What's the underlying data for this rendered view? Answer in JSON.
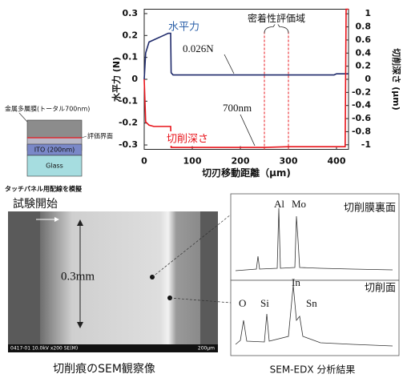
{
  "chart_data": {
    "type": "line",
    "x_label": "切刃移動距離（μm)",
    "y_label": "水平力 (N)",
    "y2_label": "切削深さ (μm)",
    "x": [
      0,
      3,
      10,
      20,
      40,
      50,
      55,
      56,
      60,
      100,
      150,
      200,
      250,
      300,
      350,
      395,
      400,
      418,
      420,
      425
    ],
    "series": [
      {
        "name": "水平力",
        "color": "#1f2a6b",
        "label_color": "#2a5fa8",
        "values": [
          0,
          0.12,
          0.17,
          0.18,
          0.2,
          0.21,
          0.21,
          0.03,
          0.02,
          0.02,
          0.02,
          0.02,
          0.02,
          0.02,
          0.02,
          0.02,
          0.025,
          0.025,
          0.025,
          0.025
        ]
      },
      {
        "name": "切削深さ",
        "color": "#e8141b",
        "axis": "y2",
        "values": [
          0,
          -0.65,
          -0.7,
          -0.72,
          -0.72,
          -0.72,
          -0.72,
          -1.04,
          -1.04,
          -1.04,
          -1.04,
          -1.04,
          -1.04,
          -1.03,
          -1.03,
          -1.03,
          -1.03,
          -1.03,
          1.07,
          1.07
        ]
      }
    ],
    "xlim": [
      0,
      425
    ],
    "xticks": [
      0,
      100,
      200,
      300,
      400
    ],
    "ylim": [
      -0.32,
      0.32
    ],
    "yticks": [
      0.3,
      0.2,
      0.1,
      0,
      -0.1,
      -0.2,
      -0.3
    ],
    "y2lim": [
      -1.07,
      1.07
    ],
    "y2ticks": [
      1,
      0.8,
      0.6,
      0.4,
      0.2,
      0,
      -0.2,
      -0.4,
      -0.6,
      -0.8,
      -1
    ],
    "region": {
      "label": "密着性評価域",
      "x": [
        250,
        300
      ],
      "color": "#e8141b"
    },
    "annotations": [
      "0.026N",
      "700nm"
    ]
  },
  "layers": {
    "metal": "金属多層膜(トータル700nm)",
    "interface": "評価界面",
    "ito": "ITO (200nm)",
    "glass": "Glass",
    "caption": "タッチパネル用配線を模擬"
  },
  "sem": {
    "start": "試験開始",
    "width": "0.3mm",
    "info": "0417-01 10.0kV x200 SE(M)",
    "scale": "200μm",
    "caption": "切削痕のSEM観察像"
  },
  "edx": {
    "top_peaks": [
      "Al",
      "Mo"
    ],
    "top_title": "切削膜裏面",
    "bottom_peaks": [
      "O",
      "Si",
      "In",
      "Sn"
    ],
    "bottom_title": "切削面",
    "caption": "SEM-EDX 分析結果"
  }
}
